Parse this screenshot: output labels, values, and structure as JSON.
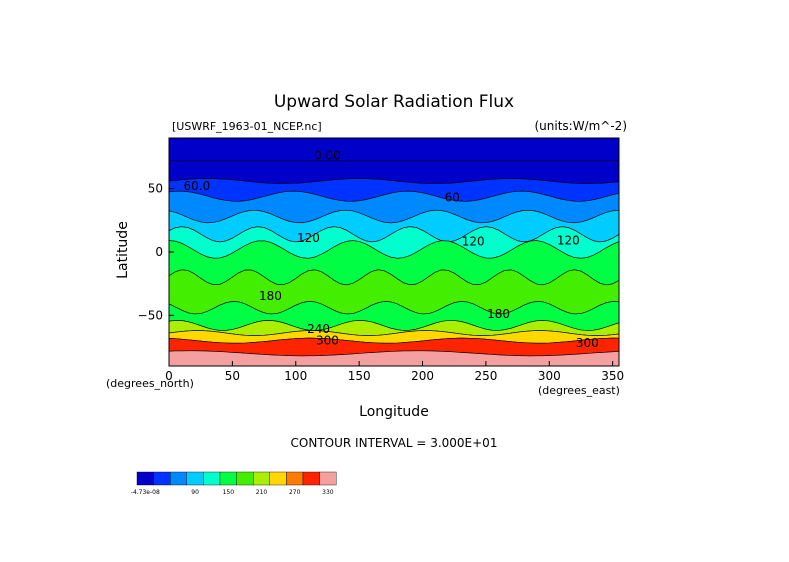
{
  "chart_data": {
    "type": "heatmap",
    "title": "Upward Solar Radiation Flux",
    "source_label": "[USWRF_1963-01_NCEP.nc]",
    "units_label": "(units:W/m^-2)",
    "xlabel": "Longitude",
    "ylabel": "Latitude",
    "x_unit_label": "(degrees_north)",
    "x_unit_label_right": "(degrees_east)",
    "xlim": [
      0,
      355
    ],
    "ylim": [
      -90,
      90
    ],
    "x_ticks": [
      0,
      50,
      100,
      150,
      200,
      250,
      300,
      350
    ],
    "y_ticks": [
      50,
      0,
      -50
    ],
    "contour_interval_text": "CONTOUR INTERVAL = 3.000E+01",
    "contour_labels": [
      {
        "text": "0.00",
        "lon": 125,
        "lat": 73
      },
      {
        "text": "60.0",
        "lon": 22,
        "lat": 49
      },
      {
        "text": "60.",
        "lon": 225,
        "lat": 40
      },
      {
        "text": "120",
        "lon": 110,
        "lat": 8
      },
      {
        "text": "120",
        "lon": 240,
        "lat": 5
      },
      {
        "text": "120",
        "lon": 315,
        "lat": 6
      },
      {
        "text": "180",
        "lon": 80,
        "lat": -38
      },
      {
        "text": "180",
        "lon": 260,
        "lat": -52
      },
      {
        "text": "240",
        "lon": 118,
        "lat": -64
      },
      {
        "text": "300",
        "lon": 125,
        "lat": -73
      },
      {
        "text": "300",
        "lon": 330,
        "lat": -75
      }
    ],
    "legend": {
      "colors": [
        "#0000c8",
        "#0033ff",
        "#0088ff",
        "#00ccff",
        "#00ffcc",
        "#00ff44",
        "#44ee00",
        "#aaee00",
        "#ffd800",
        "#ff7a00",
        "#ff2400",
        "#f5a0a0"
      ],
      "tick_labels": [
        {
          "label": "-4.73e-08",
          "at": 0
        },
        {
          "label": "90",
          "at": 3
        },
        {
          "label": "150",
          "at": 5
        },
        {
          "label": "210",
          "at": 7
        },
        {
          "label": "270",
          "at": 9
        },
        {
          "label": "330",
          "at": 11
        }
      ]
    }
  }
}
